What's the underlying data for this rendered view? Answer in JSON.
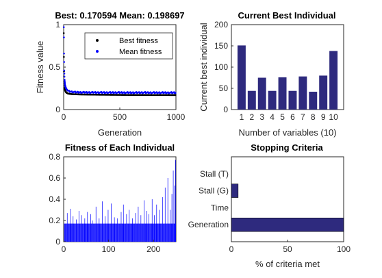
{
  "chart_data": [
    {
      "type": "scatter",
      "title": "Best: 0.170594 Mean: 0.198697",
      "xlabel": "Generation",
      "ylabel": "Fitness value",
      "xlim": [
        0,
        1000
      ],
      "ylim": [
        0,
        1
      ],
      "xticks": [
        "0",
        "500",
        "1000"
      ],
      "yticks": [
        "0",
        "0.5",
        "1"
      ],
      "legend_position": "top-right",
      "series": [
        {
          "name": "Best fitness",
          "color": "#000000",
          "x": [
            1,
            2,
            3,
            5,
            8,
            12,
            18,
            25,
            35,
            50,
            70,
            100,
            150,
            200,
            300,
            400,
            500,
            600,
            700,
            800,
            900,
            1000
          ],
          "y": [
            0.9,
            0.62,
            0.45,
            0.33,
            0.26,
            0.23,
            0.21,
            0.2,
            0.19,
            0.185,
            0.182,
            0.18,
            0.178,
            0.177,
            0.175,
            0.174,
            0.173,
            0.172,
            0.172,
            0.171,
            0.171,
            0.1706
          ]
        },
        {
          "name": "Mean fitness",
          "color": "#0000ff",
          "x": [
            1,
            2,
            3,
            5,
            8,
            12,
            18,
            25,
            35,
            50,
            70,
            100,
            150,
            200,
            300,
            400,
            500,
            600,
            700,
            800,
            900,
            1000
          ],
          "y": [
            0.97,
            0.85,
            0.66,
            0.46,
            0.35,
            0.29,
            0.26,
            0.24,
            0.225,
            0.215,
            0.21,
            0.205,
            0.203,
            0.202,
            0.201,
            0.2,
            0.2,
            0.199,
            0.2,
            0.199,
            0.199,
            0.1987
          ]
        }
      ]
    },
    {
      "type": "bar",
      "title": "Current Best Individual",
      "xlabel": "Number of variables (10)",
      "ylabel": "Current best individual",
      "categories": [
        "1",
        "2",
        "3",
        "4",
        "5",
        "6",
        "7",
        "8",
        "9",
        "10"
      ],
      "values": [
        151,
        44,
        75,
        44,
        76,
        44,
        78,
        42,
        80,
        138
      ],
      "ylim": [
        0,
        200
      ],
      "yticks": [
        "0",
        "50",
        "100",
        "150",
        "200"
      ],
      "color": "#2e2a7e"
    },
    {
      "type": "bar",
      "title": "Fitness of Each Individual",
      "xlim": [
        0,
        250
      ],
      "ylim": [
        0,
        0.8
      ],
      "xticks": [
        "0",
        "100",
        "200"
      ],
      "yticks": [
        "0",
        "0.2",
        "0.4",
        "0.6",
        "0.8"
      ],
      "color": "#0000ff",
      "base_value": 0.1706,
      "outlier_x": [
        8,
        15,
        21,
        28,
        34,
        40,
        47,
        53,
        60,
        64,
        72,
        79,
        86,
        92,
        99,
        106,
        113,
        120,
        128,
        133,
        140,
        146,
        153,
        160,
        166,
        172,
        179,
        185,
        190,
        197,
        202,
        207,
        213,
        220,
        226,
        232,
        237,
        241,
        244,
        247,
        249
      ],
      "outlier_y": [
        0.27,
        0.31,
        0.24,
        0.21,
        0.29,
        0.25,
        0.22,
        0.28,
        0.26,
        0.2,
        0.33,
        0.22,
        0.38,
        0.24,
        0.3,
        0.36,
        0.23,
        0.22,
        0.28,
        0.35,
        0.26,
        0.3,
        0.22,
        0.27,
        0.33,
        0.25,
        0.39,
        0.29,
        0.26,
        0.4,
        0.25,
        0.35,
        0.3,
        0.42,
        0.51,
        0.6,
        0.3,
        0.45,
        0.67,
        0.53,
        0.77
      ]
    },
    {
      "type": "bar",
      "orientation": "horizontal",
      "title": "Stopping Criteria",
      "xlabel": "% of criteria met",
      "categories": [
        "Generation",
        "Time",
        "Stall (G)",
        "Stall (T)"
      ],
      "values": [
        100,
        0,
        6,
        0
      ],
      "xlim": [
        0,
        100
      ],
      "xticks": [
        "0",
        "50",
        "100"
      ],
      "color": "#2e2a7e"
    }
  ]
}
